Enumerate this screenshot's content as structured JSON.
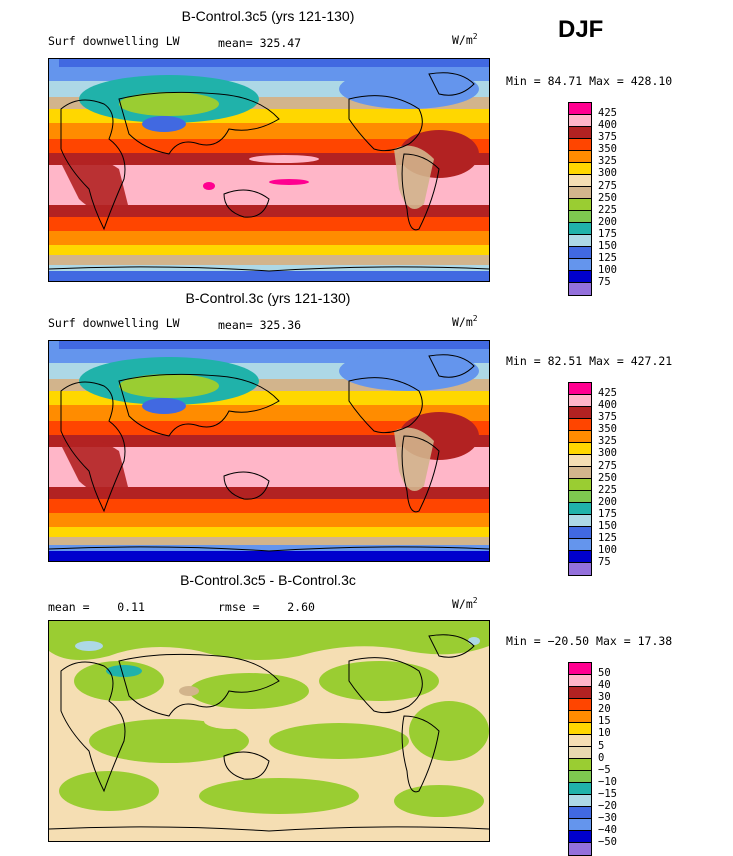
{
  "season": "DJF",
  "units_base": "W/m",
  "units_exp": "2",
  "panels": [
    {
      "title": "B-Control.3c5 (yrs 121-130)",
      "left_label": "Surf downwelling LW",
      "stat_label": "mean=",
      "stat_value": "325.47",
      "min_label": "Min =",
      "min": "84.71",
      "max_label": "Max =",
      "max": "428.10",
      "legend": [
        "425",
        "400",
        "375",
        "350",
        "325",
        "300",
        "275",
        "250",
        "225",
        "200",
        "175",
        "150",
        "125",
        "100",
        "75"
      ]
    },
    {
      "title": "B-Control.3c (yrs 121-130)",
      "left_label": "Surf downwelling LW",
      "stat_label": "mean=",
      "stat_value": "325.36",
      "min_label": "Min =",
      "min": "82.51",
      "max_label": "Max =",
      "max": "427.21",
      "legend": [
        "425",
        "400",
        "375",
        "350",
        "325",
        "300",
        "275",
        "250",
        "225",
        "200",
        "175",
        "150",
        "125",
        "100",
        "75"
      ]
    },
    {
      "title": "B-Control.3c5 - B-Control.3c",
      "left_label": "mean =",
      "left_value": "0.11",
      "stat_label": "rmse =",
      "stat_value": "2.60",
      "min_label": "Min =",
      "min": "−20.50",
      "max_label": "Max =",
      "max": "17.38",
      "legend": [
        "50",
        "40",
        "30",
        "20",
        "15",
        "10",
        "5",
        "0",
        "−5",
        "−10",
        "−15",
        "−20",
        "−30",
        "−40",
        "−50"
      ]
    }
  ],
  "colors": {
    "abs_scale": [
      "#ff0090",
      "#ffb6c8",
      "#b22222",
      "#ff4500",
      "#ff8c00",
      "#ffd700",
      "#f5deb3",
      "#d2b48c",
      "#9acd32",
      "#7ec850",
      "#20b2aa",
      "#add8e6",
      "#4169e1",
      "#6495ed",
      "#0000cd",
      "#9370db"
    ],
    "diff_scale": [
      "#ff0090",
      "#ffb6c8",
      "#b22222",
      "#ff4500",
      "#ff8c00",
      "#ffd700",
      "#f5deb3",
      "#e8d8b0",
      "#9acd32",
      "#7ec850",
      "#20b2aa",
      "#add8e6",
      "#4169e1",
      "#6495ed",
      "#0000cd",
      "#9370db"
    ]
  }
}
